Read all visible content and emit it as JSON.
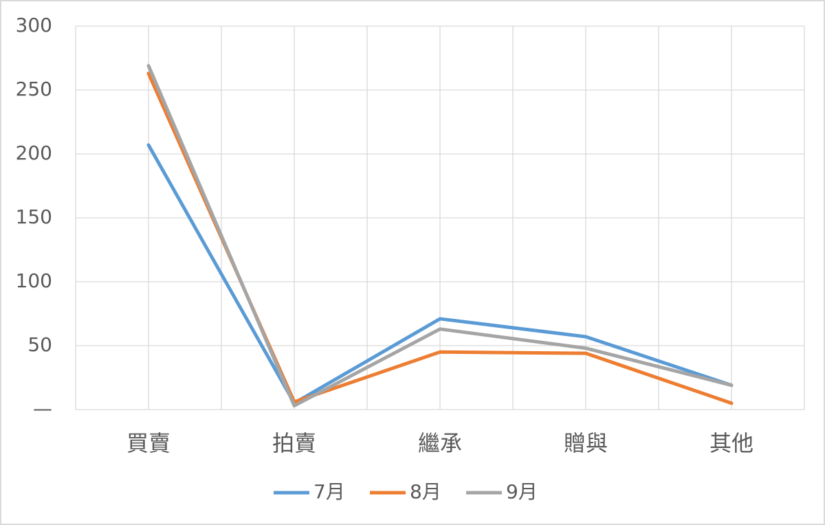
{
  "chart_data": {
    "type": "line",
    "categories": [
      "買賣",
      "拍賣",
      "繼承",
      "贈與",
      "其他"
    ],
    "series": [
      {
        "name": "7月",
        "color": "#5b9bd5",
        "values": [
          207,
          5,
          71,
          57,
          19
        ]
      },
      {
        "name": "8月",
        "color": "#ed7d31",
        "values": [
          263,
          6,
          45,
          44,
          5
        ]
      },
      {
        "name": "9月",
        "color": "#a5a5a5",
        "values": [
          269,
          3,
          63,
          48,
          19
        ]
      }
    ],
    "ylim": [
      0,
      300
    ],
    "yticks": [
      {
        "value": 0,
        "label": "—"
      },
      50,
      100,
      150,
      200,
      250,
      300
    ],
    "grid": true,
    "legend": "bottom"
  }
}
